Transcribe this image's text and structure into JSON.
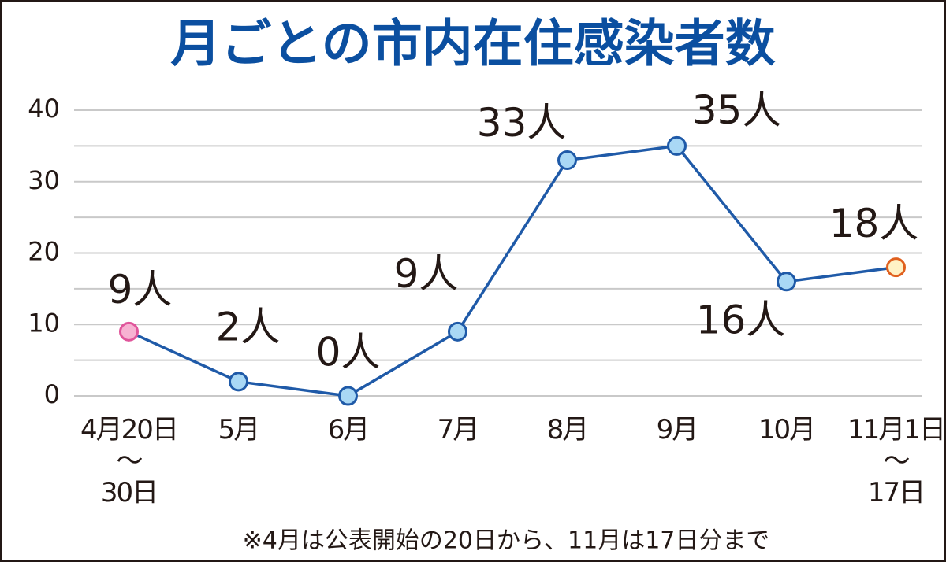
{
  "chart_data": {
    "type": "line",
    "title": "月ごとの市内在住感染者数",
    "note": "※4月は公表開始の20日から、11月は17日分まで",
    "categories": [
      "4月20日\n～\n30日",
      "5月",
      "6月",
      "7月",
      "8月",
      "9月",
      "10月",
      "11月1日\n～\n17日"
    ],
    "series": [
      {
        "name": "感染者数",
        "color": "#1f5aa8",
        "values": [
          9,
          2,
          0,
          9,
          33,
          35,
          16,
          18
        ],
        "value_labels": [
          "9人",
          "2人",
          "0人",
          "9人",
          "33人",
          "35人",
          "16人",
          "18人"
        ],
        "marker_colors": [
          {
            "fill": "#f7b2d2",
            "stroke": "#e0559b"
          },
          {
            "fill": "#a9d8f5",
            "stroke": "#1f5aa8"
          },
          {
            "fill": "#a9d8f5",
            "stroke": "#1f5aa8"
          },
          {
            "fill": "#a9d8f5",
            "stroke": "#1f5aa8"
          },
          {
            "fill": "#a9d8f5",
            "stroke": "#1f5aa8"
          },
          {
            "fill": "#a9d8f5",
            "stroke": "#1f5aa8"
          },
          {
            "fill": "#a9d8f5",
            "stroke": "#1f5aa8"
          },
          {
            "fill": "#fff2c6",
            "stroke": "#e0601e"
          }
        ]
      }
    ],
    "ylim": [
      0,
      40
    ],
    "yticks": [
      0,
      10,
      20,
      30,
      40
    ],
    "minor_grid": [
      5,
      15,
      25,
      35
    ],
    "grid": true
  }
}
